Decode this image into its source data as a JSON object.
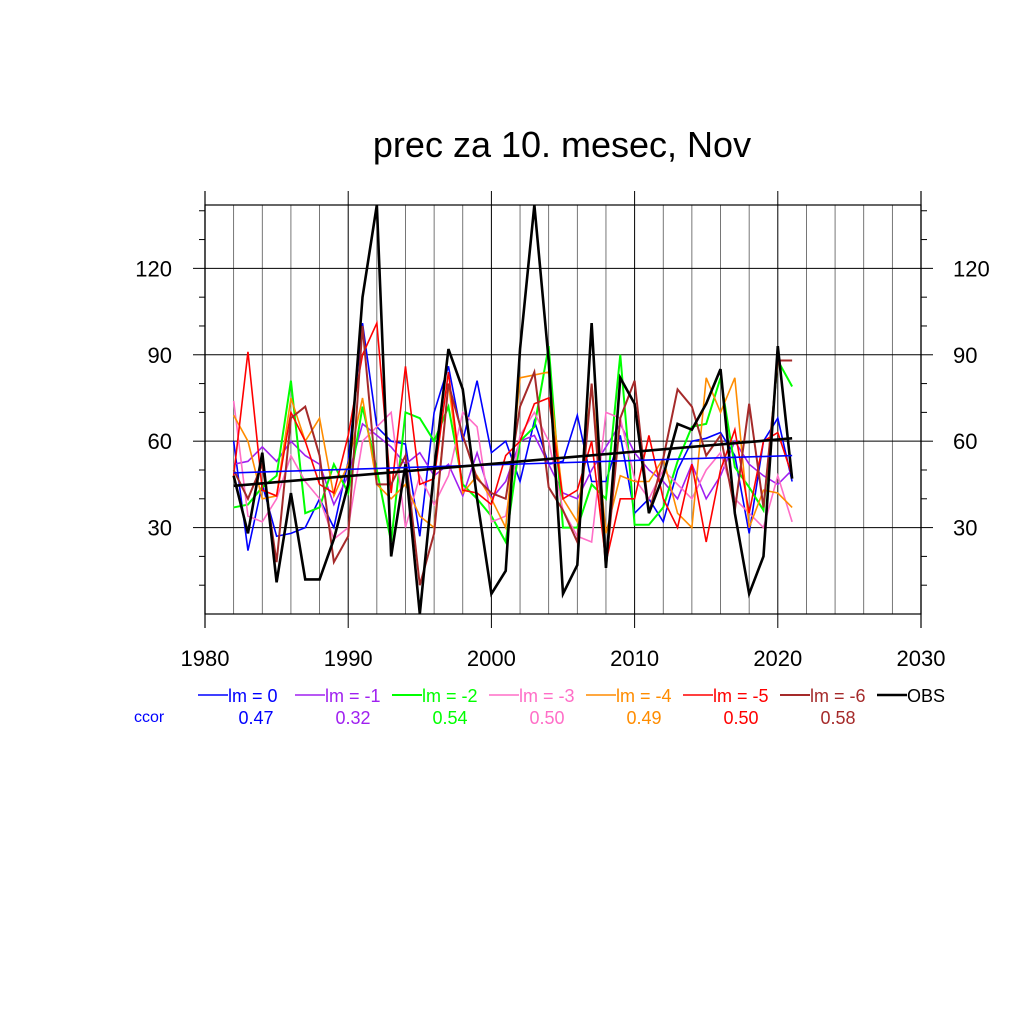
{
  "chart_data": {
    "type": "line",
    "title": "prec za 10. mesec, Nov",
    "xlim": [
      1980,
      2030
    ],
    "ylim": [
      0,
      142
    ],
    "xticks": [
      1980,
      1990,
      2000,
      2010,
      2020,
      2030
    ],
    "yticks": [
      30,
      60,
      90,
      120
    ],
    "grid": true,
    "years": [
      1982,
      1983,
      1984,
      1985,
      1986,
      1987,
      1988,
      1989,
      1990,
      1991,
      1992,
      1993,
      1994,
      1995,
      1996,
      1997,
      1998,
      1999,
      2000,
      2001,
      2002,
      2003,
      2004,
      2005,
      2006,
      2007,
      2008,
      2009,
      2010,
      2011,
      2012,
      2013,
      2014,
      2015,
      2016,
      2017,
      2018,
      2019,
      2020,
      2021
    ],
    "series": [
      {
        "name": "lm = 0",
        "color": "#0000ff",
        "width": 1.6,
        "values": [
          60,
          22,
          45,
          27,
          28,
          30,
          40,
          30,
          53,
          101,
          65,
          60,
          59,
          27,
          70,
          86,
          60,
          81,
          56,
          60,
          46,
          67,
          52,
          53,
          69,
          46,
          46,
          62,
          35,
          40,
          32,
          50,
          60,
          61,
          63,
          55,
          28,
          60,
          68,
          46
        ]
      },
      {
        "name": "lm = -1",
        "color": "#a020f0",
        "width": 1.6,
        "values": [
          52,
          53,
          58,
          53,
          60,
          55,
          52,
          38,
          48,
          66,
          62,
          58,
          52,
          56,
          48,
          52,
          41,
          56,
          40,
          46,
          60,
          62,
          52,
          42,
          40,
          50,
          58,
          66,
          56,
          50,
          46,
          40,
          52,
          40,
          48,
          60,
          52,
          48,
          45,
          50
        ]
      },
      {
        "name": "lm = -2",
        "color": "#00ff00",
        "width": 2.0,
        "values": [
          37,
          38,
          44,
          48,
          81,
          35,
          37,
          52,
          42,
          72,
          50,
          25,
          70,
          68,
          60,
          72,
          45,
          40,
          34,
          25,
          60,
          65,
          93,
          30,
          30,
          45,
          40,
          90,
          31,
          31,
          37,
          53,
          65,
          66,
          82,
          51,
          44,
          36,
          88,
          79
        ]
      },
      {
        "name": "lm = -3",
        "color": "#ff6ec7",
        "width": 1.6,
        "values": [
          74,
          34,
          32,
          40,
          55,
          46,
          40,
          26,
          30,
          60,
          65,
          70,
          30,
          48,
          38,
          48,
          70,
          65,
          32,
          34,
          62,
          70,
          60,
          36,
          27,
          25,
          70,
          68,
          47,
          40,
          50,
          45,
          40,
          50,
          56,
          40,
          35,
          30,
          48,
          32
        ]
      },
      {
        "name": "lm = -4",
        "color": "#ff8c00",
        "width": 1.6,
        "values": [
          69,
          60,
          40,
          41,
          75,
          60,
          68,
          41,
          52,
          75,
          45,
          40,
          45,
          34,
          30,
          80,
          42,
          48,
          40,
          30,
          82,
          83,
          84,
          40,
          32,
          80,
          28,
          48,
          46,
          46,
          54,
          35,
          30,
          82,
          70,
          82,
          30,
          43,
          42,
          37
        ]
      },
      {
        "name": "lm = -5",
        "color": "#ff0000",
        "width": 1.6,
        "values": [
          48,
          91,
          43,
          41,
          70,
          60,
          45,
          42,
          62,
          90,
          101,
          42,
          86,
          45,
          47,
          84,
          43,
          42,
          38,
          55,
          60,
          73,
          75,
          40,
          43,
          60,
          18,
          40,
          40,
          62,
          40,
          30,
          52,
          25,
          50,
          64,
          35,
          60,
          63,
          48
        ]
      },
      {
        "name": "lm = -6",
        "color": "#a52a2a",
        "width": 2.0,
        "values": [
          50,
          40,
          52,
          18,
          68,
          72,
          55,
          18,
          27,
          100,
          45,
          45,
          55,
          10,
          28,
          80,
          62,
          47,
          42,
          40,
          72,
          84,
          44,
          36,
          25,
          80,
          16,
          68,
          81,
          35,
          54,
          78,
          72,
          55,
          62,
          36,
          73,
          37,
          88,
          88
        ]
      },
      {
        "name": "OBS",
        "color": "#000000",
        "width": 2.6,
        "values": [
          48,
          28,
          56,
          11,
          42,
          12,
          12,
          26,
          45,
          110,
          142,
          20,
          52,
          0,
          50,
          92,
          78,
          40,
          7,
          15,
          92,
          142,
          88,
          7,
          17,
          101,
          16,
          82,
          73,
          35,
          48,
          66,
          64,
          73,
          85,
          35,
          7,
          20,
          93,
          47
        ]
      }
    ],
    "trend_lines": [
      {
        "series": "lm = 0",
        "color": "#0000ff",
        "x": [
          1982,
          2021
        ],
        "y": [
          49,
          55
        ]
      },
      {
        "series": "OBS",
        "color": "#000000",
        "x": [
          1982,
          2021
        ],
        "y": [
          44.5,
          61
        ]
      }
    ],
    "legend": {
      "placement": "bottom",
      "ccor_label": "ccor",
      "ccor_values": [
        "0.47",
        "0.32",
        "0.54",
        "0.50",
        "0.49",
        "0.50",
        "0.58"
      ]
    }
  }
}
